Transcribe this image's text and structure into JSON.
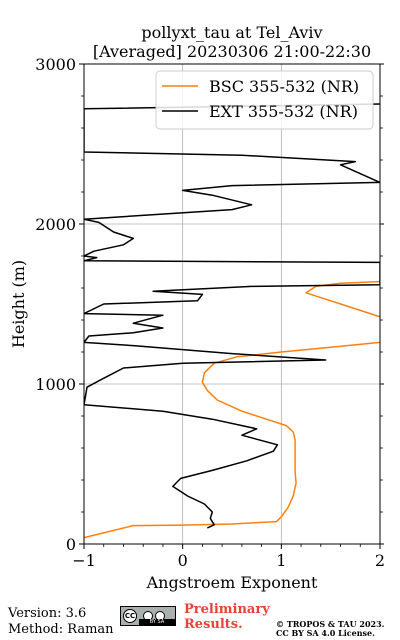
{
  "chart_data": {
    "type": "line",
    "title_line1": "pollyxt_tau at Tel_Aviv",
    "title_line2": "[Averaged] 20230306 21:00-22:30",
    "xlabel": "Angstroem Exponent",
    "ylabel": "Height (m)",
    "xlim": [
      -1,
      2
    ],
    "ylim": [
      0,
      3000
    ],
    "xticks": [
      "-1",
      "0",
      "1",
      "2"
    ],
    "yticks": [
      "0",
      "1000",
      "2000",
      "3000"
    ],
    "grid": true,
    "legend_position": "top-right",
    "series": [
      {
        "name": "BSC 355-532 (NR)",
        "color": "#ff7f0e",
        "points": [
          [
            -1.0,
            40
          ],
          [
            -0.5,
            115
          ],
          [
            0.0,
            118
          ],
          [
            0.5,
            125
          ],
          [
            0.95,
            140
          ],
          [
            1.0,
            170
          ],
          [
            1.07,
            230
          ],
          [
            1.12,
            300
          ],
          [
            1.15,
            380
          ],
          [
            1.14,
            450
          ],
          [
            1.14,
            550
          ],
          [
            1.14,
            650
          ],
          [
            1.12,
            700
          ],
          [
            1.05,
            740
          ],
          [
            0.9,
            770
          ],
          [
            0.6,
            830
          ],
          [
            0.35,
            900
          ],
          [
            0.25,
            960
          ],
          [
            0.2,
            1010
          ],
          [
            0.22,
            1070
          ],
          [
            0.32,
            1130
          ],
          [
            0.55,
            1170
          ],
          [
            1.0,
            1200
          ],
          [
            1.5,
            1230
          ],
          [
            2.0,
            1260
          ]
        ]
      },
      {
        "name": "",
        "color": "#ff7f0e",
        "points": [
          [
            2.0,
            1420
          ],
          [
            1.8,
            1460
          ],
          [
            1.45,
            1530
          ],
          [
            1.25,
            1570
          ],
          [
            1.35,
            1610
          ],
          [
            1.6,
            1630
          ],
          [
            2.0,
            1640
          ]
        ]
      },
      {
        "name": "EXT 355-532 (NR)",
        "color": "#000000",
        "points": [
          [
            0.25,
            100
          ],
          [
            0.32,
            120
          ],
          [
            0.28,
            160
          ],
          [
            0.3,
            200
          ],
          [
            0.22,
            250
          ],
          [
            0.05,
            300
          ],
          [
            -0.1,
            360
          ],
          [
            -0.02,
            410
          ],
          [
            0.3,
            460
          ],
          [
            0.65,
            520
          ],
          [
            0.92,
            580
          ],
          [
            0.96,
            620
          ],
          [
            0.6,
            680
          ],
          [
            0.75,
            720
          ],
          [
            0.3,
            780
          ],
          [
            -0.2,
            830
          ],
          [
            -1.0,
            870
          ],
          [
            -0.97,
            980
          ],
          [
            -0.85,
            1020
          ],
          [
            -0.6,
            1100
          ],
          [
            0.0,
            1130
          ],
          [
            1.45,
            1150
          ],
          [
            0.5,
            1190
          ],
          [
            -0.5,
            1240
          ],
          [
            -1.0,
            1260
          ],
          [
            -0.95,
            1300
          ],
          [
            -0.5,
            1320
          ],
          [
            -0.2,
            1350
          ],
          [
            -0.5,
            1380
          ],
          [
            -0.2,
            1430
          ],
          [
            -1.0,
            1440
          ],
          [
            -0.8,
            1500
          ],
          [
            0.15,
            1520
          ],
          [
            0.2,
            1560
          ],
          [
            -0.3,
            1580
          ],
          [
            0.7,
            1610
          ],
          [
            2.0,
            1620
          ],
          [
            2.0,
            1760
          ],
          [
            -1.0,
            1770
          ],
          [
            -0.87,
            1790
          ],
          [
            -1.0,
            1800
          ],
          [
            -0.9,
            1830
          ],
          [
            -0.6,
            1870
          ],
          [
            -0.5,
            1910
          ],
          [
            -0.7,
            1950
          ],
          [
            -0.85,
            2010
          ],
          [
            -1.0,
            2030
          ],
          [
            0.5,
            2090
          ],
          [
            0.7,
            2120
          ],
          [
            0.3,
            2180
          ],
          [
            0.0,
            2210
          ],
          [
            0.5,
            2240
          ],
          [
            2.0,
            2260
          ],
          [
            1.6,
            2370
          ],
          [
            1.75,
            2390
          ],
          [
            0.6,
            2430
          ],
          [
            -1.0,
            2450
          ],
          [
            -1.0,
            2720
          ],
          [
            2.0,
            2750
          ]
        ]
      }
    ]
  },
  "footer": {
    "version": "Version: 3.6",
    "method": "Method: Raman",
    "cc_label": "CC",
    "cc_strip": "BY SA",
    "preliminary": "Preliminary Results.",
    "copyright_line1": "© TROPOS & TAU 2023.",
    "copyright_line2": "CC BY SA 4.0 License."
  }
}
